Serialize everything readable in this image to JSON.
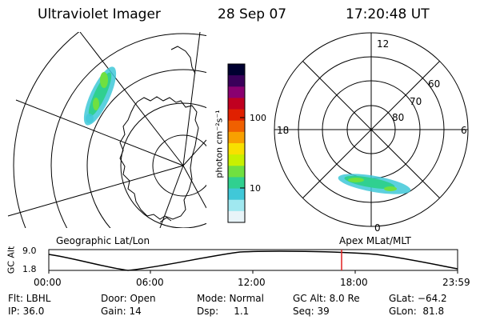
{
  "header": {
    "title": "Ultraviolet Imager",
    "date": "28 Sep 07",
    "time": "17:20:48 UT"
  },
  "geo_panel": {
    "label": "Geographic Lat/Lon"
  },
  "polar_panel": {
    "label": "Apex MLat/MLT",
    "mlt_labels": {
      "top": "12",
      "left": "18",
      "right": "6",
      "bottom": "0"
    },
    "lat_labels": [
      "60",
      "70",
      "80"
    ]
  },
  "colorbar": {
    "unit": "photon cm⁻²s⁻¹",
    "ticks": [
      "100",
      "10"
    ],
    "colors": [
      "#000030",
      "#3a005a",
      "#8a0070",
      "#c00020",
      "#e02000",
      "#f06000",
      "#f8a000",
      "#f8e000",
      "#c8f000",
      "#70e040",
      "#30d090",
      "#40c8d8",
      "#a0e8f0",
      "#e8f4f8"
    ]
  },
  "timeline": {
    "y_label": "GC Alt",
    "y_ticks": [
      "9.0",
      "1.8"
    ],
    "x_ticks": [
      "00:00",
      "06:00",
      "12:00",
      "18:00",
      "23:59"
    ],
    "marker_time": "17:20:48",
    "marker_color": "#e02020"
  },
  "info": {
    "col1": [
      "Flt: LBHL",
      "IP: 36.0"
    ],
    "col2": [
      "Door: Open",
      "Gain: 14"
    ],
    "col3": [
      "Mode: Normal",
      "Dsp:     1.1"
    ],
    "col4": [
      "GC Alt: 8.0 Re",
      "Seq: 39"
    ],
    "col5": [
      "GLat: −64.2",
      "GLon:  81.8"
    ]
  }
}
